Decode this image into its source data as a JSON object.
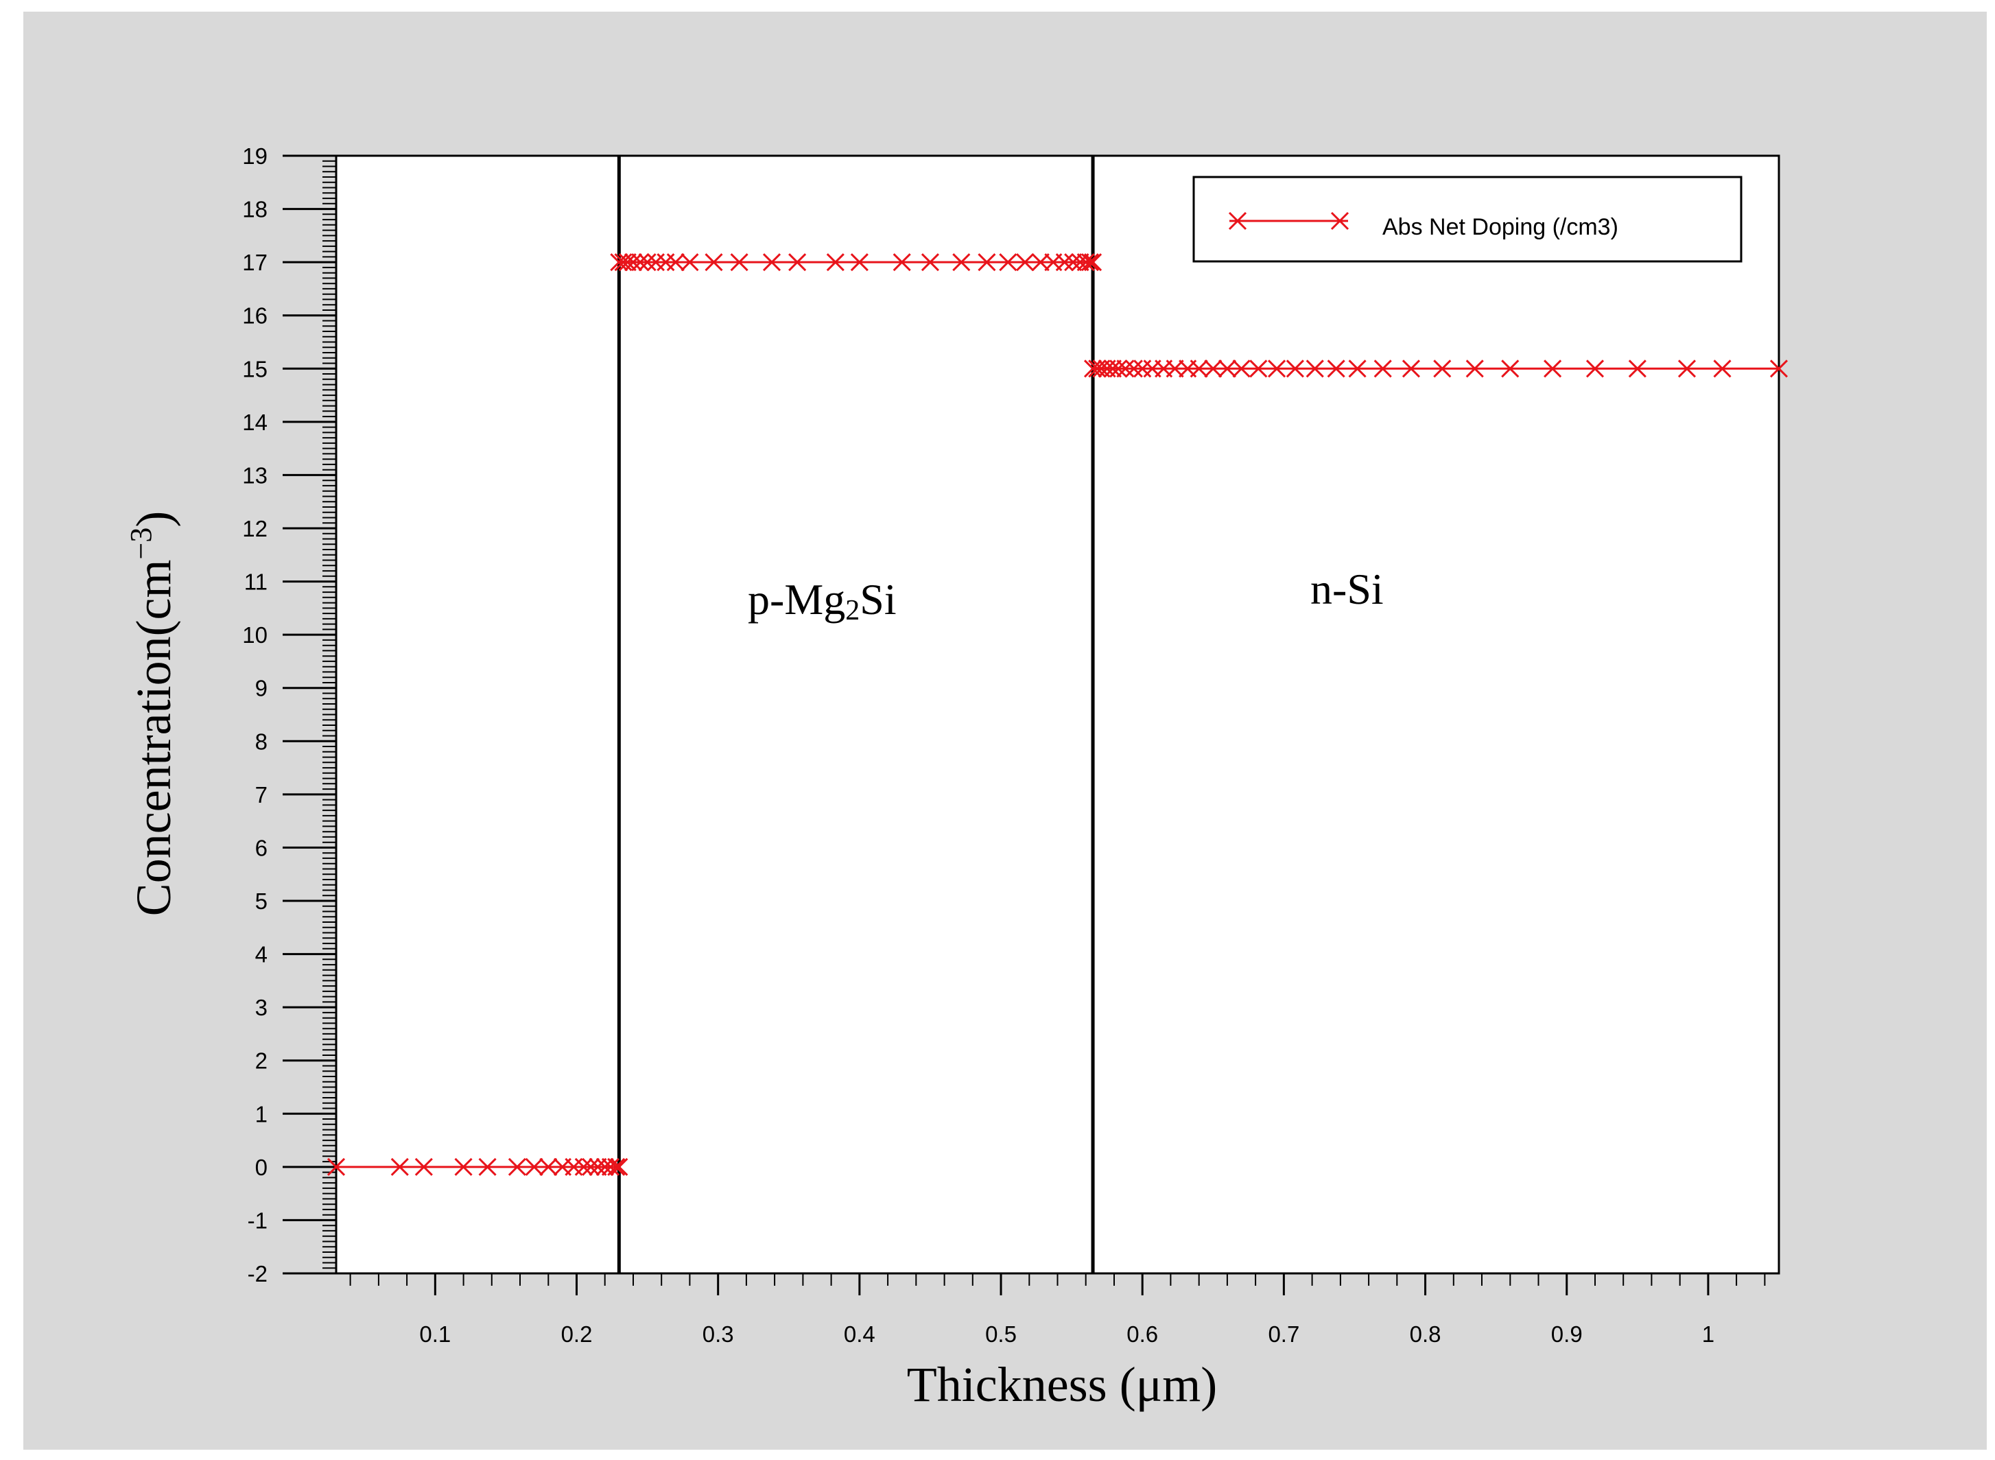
{
  "chart_data": {
    "type": "line",
    "xlabel": "Thickness (μm)",
    "ylabel": "Concentration(cm",
    "ylabel_sup": "−3",
    "ylabel_close": ")",
    "xlim": [
      0.03,
      1.05
    ],
    "ylim": [
      -2,
      19
    ],
    "x_ticks": [
      0.1,
      0.2,
      0.3,
      0.4,
      0.5,
      0.6,
      0.7,
      0.8,
      0.9,
      1
    ],
    "x_tick_labels": [
      "0.1",
      "0.2",
      "0.3",
      "0.4",
      "0.5",
      "0.6",
      "0.7",
      "0.8",
      "0.9",
      "1"
    ],
    "y_ticks": [
      -2,
      -1,
      0,
      1,
      2,
      3,
      4,
      5,
      6,
      7,
      8,
      9,
      10,
      11,
      12,
      13,
      14,
      15,
      16,
      17,
      18,
      19
    ],
    "y_tick_labels": [
      "-2",
      "-1",
      "0",
      "1",
      "2",
      "3",
      "4",
      "5",
      "6",
      "7",
      "8",
      "9",
      "10",
      "11",
      "12",
      "13",
      "14",
      "15",
      "16",
      "17",
      "18",
      "19"
    ],
    "boundaries_x": [
      0.23,
      0.565
    ],
    "region_labels": [
      {
        "main": "p-Mg",
        "sub": "2",
        "tail": "Si",
        "x": 0.4,
        "y": 10.6
      },
      {
        "main": "n-Si",
        "sub": "",
        "tail": "",
        "x": 0.77,
        "y": 10.8
      }
    ],
    "legend_position": "top-right",
    "series": [
      {
        "name": "Abs Net Doping (/cm3)",
        "color": "#e8141b",
        "marker": "x",
        "segments": [
          {
            "x_range": [
              0.03,
              0.23
            ],
            "y": 0,
            "marker_x": [
              0.03,
              0.075,
              0.092,
              0.12,
              0.137,
              0.158,
              0.17,
              0.18,
              0.19,
              0.198,
              0.205,
              0.21,
              0.215,
              0.22,
              0.224,
              0.228,
              0.23
            ]
          },
          {
            "x_range": [
              0.23,
              0.565
            ],
            "y": 17,
            "marker_x": [
              0.23,
              0.233,
              0.236,
              0.24,
              0.245,
              0.25,
              0.256,
              0.263,
              0.27,
              0.28,
              0.297,
              0.315,
              0.338,
              0.356,
              0.383,
              0.4,
              0.43,
              0.45,
              0.472,
              0.49,
              0.505,
              0.517,
              0.528,
              0.537,
              0.545,
              0.551,
              0.556,
              0.56,
              0.563,
              0.565
            ]
          },
          {
            "x_range": [
              0.565,
              1.05
            ],
            "y": 15,
            "marker_x": [
              0.565,
              0.568,
              0.571,
              0.575,
              0.579,
              0.583,
              0.588,
              0.594,
              0.6,
              0.607,
              0.615,
              0.623,
              0.632,
              0.64,
              0.65,
              0.66,
              0.67,
              0.682,
              0.695,
              0.708,
              0.722,
              0.737,
              0.752,
              0.77,
              0.79,
              0.812,
              0.835,
              0.86,
              0.89,
              0.92,
              0.95,
              0.985,
              1.01,
              1.05
            ]
          }
        ]
      }
    ]
  }
}
